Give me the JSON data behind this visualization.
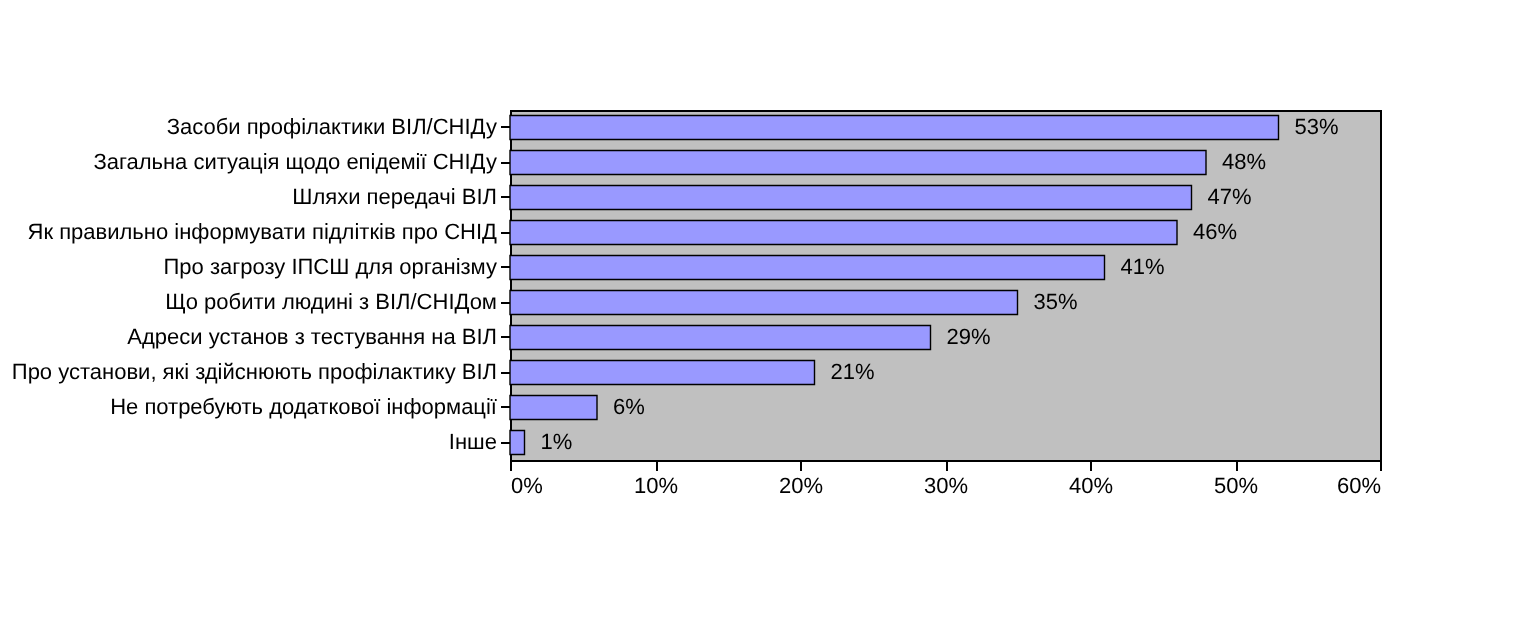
{
  "chart_data": {
    "type": "bar",
    "orientation": "horizontal",
    "categories": [
      "Засоби профілактики ВІЛ/СНІДу",
      "Загальна ситуація щодо епідемії СНІДу",
      "Шляхи передачі ВІЛ",
      "Як правильно інформувати підлітків про СНІД",
      "Про загрозу ІПСШ для організму",
      "Що робити людині з ВІЛ/СНІДом",
      "Адреси установ з тестування на ВІЛ",
      "Про установи, які здійснюють профілактику ВІЛ",
      "Не потребують додаткової інформації",
      "Інше"
    ],
    "values": [
      53,
      48,
      47,
      46,
      41,
      35,
      29,
      21,
      6,
      1
    ],
    "value_labels": [
      "53%",
      "48%",
      "47%",
      "46%",
      "41%",
      "35%",
      "29%",
      "21%",
      "6%",
      "1%"
    ],
    "color": "#9999ff",
    "xlim": [
      0,
      60
    ],
    "xticks": [
      {
        "value": 0,
        "label": "0%"
      },
      {
        "value": 10,
        "label": "10%"
      },
      {
        "value": 20,
        "label": "20%"
      },
      {
        "value": 30,
        "label": "30%"
      },
      {
        "value": 40,
        "label": "40%"
      },
      {
        "value": 50,
        "label": "50%"
      },
      {
        "value": 60,
        "label": "60%"
      }
    ],
    "grid": false
  }
}
